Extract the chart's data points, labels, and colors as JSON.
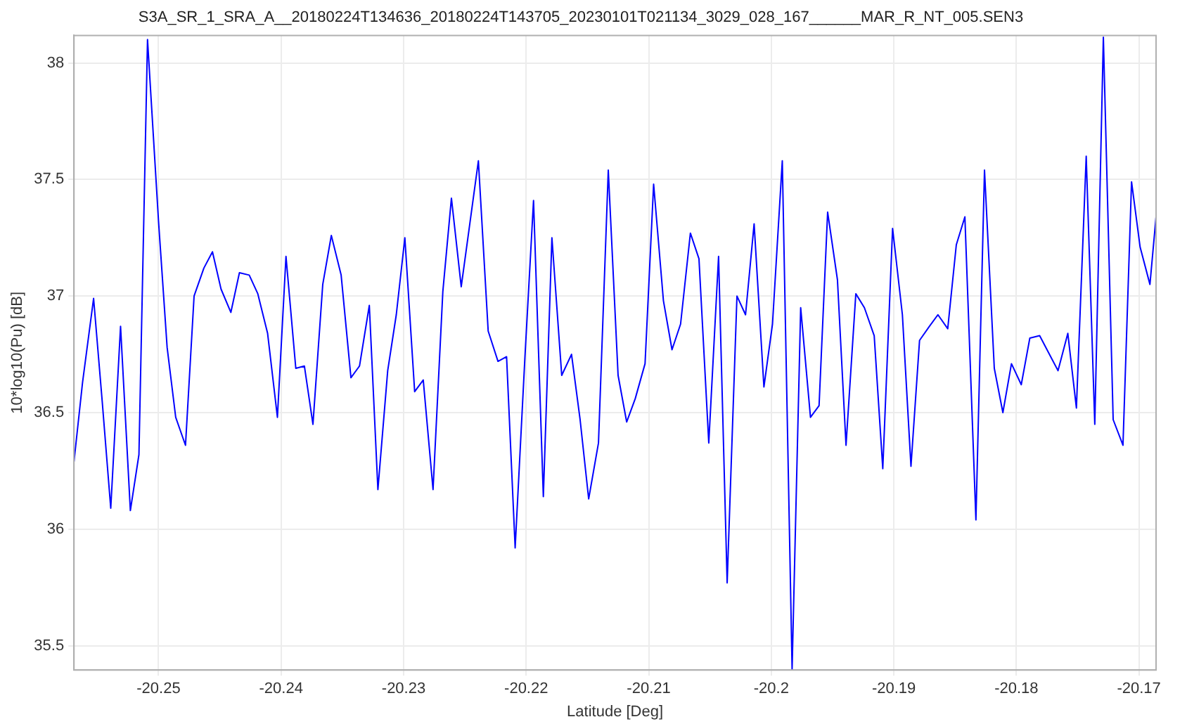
{
  "chart_data": {
    "type": "line",
    "title": "S3A_SR_1_SRA_A__20180224T134636_20180224T143705_20230101T021134_3029_028_167______MAR_R_NT_005.SEN3",
    "xlabel": "Latitude [Deg]",
    "ylabel": "10*log10(Pu) [dB]",
    "x": [
      -20.2569,
      -20.2562,
      -20.2553,
      -20.2546,
      -20.2539,
      -20.2531,
      -20.2523,
      -20.2516,
      -20.2509,
      -20.25,
      -20.2493,
      -20.2486,
      -20.2478,
      -20.2471,
      -20.2463,
      -20.2456,
      -20.2449,
      -20.2441,
      -20.2434,
      -20.2426,
      -20.2419,
      -20.2411,
      -20.2403,
      -20.2396,
      -20.2388,
      -20.2381,
      -20.2374,
      -20.2366,
      -20.2359,
      -20.2351,
      -20.2343,
      -20.2336,
      -20.2328,
      -20.2321,
      -20.2313,
      -20.2306,
      -20.2299,
      -20.2291,
      -20.2284,
      -20.2276,
      -20.2268,
      -20.2261,
      -20.2253,
      -20.2246,
      -20.2239,
      -20.2231,
      -20.2223,
      -20.2216,
      -20.2209,
      -20.2201,
      -20.2194,
      -20.2186,
      -20.2179,
      -20.2171,
      -20.2163,
      -20.2156,
      -20.2149,
      -20.2141,
      -20.2133,
      -20.2125,
      -20.2118,
      -20.2111,
      -20.2103,
      -20.2096,
      -20.2088,
      -20.2081,
      -20.2074,
      -20.2066,
      -20.2059,
      -20.2051,
      -20.2043,
      -20.2036,
      -20.2028,
      -20.2021,
      -20.2014,
      -20.2006,
      -20.1999,
      -20.1991,
      -20.1983,
      -20.1976,
      -20.1968,
      -20.1961,
      -20.1954,
      -20.1946,
      -20.1939,
      -20.1931,
      -20.1924,
      -20.1916,
      -20.1909,
      -20.1901,
      -20.1893,
      -20.1886,
      -20.1879,
      -20.1871,
      -20.1864,
      -20.1856,
      -20.1849,
      -20.1842,
      -20.1833,
      -20.1826,
      -20.1818,
      -20.1811,
      -20.1804,
      -20.1796,
      -20.1789,
      -20.1781,
      -20.1774,
      -20.1766,
      -20.1758,
      -20.1751,
      -20.1743,
      -20.1736,
      -20.1729,
      -20.1721,
      -20.1713,
      -20.1706,
      -20.1699,
      -20.1691,
      -20.1686
    ],
    "series": [
      {
        "color": "#0000ff",
        "values": [
          36.29,
          36.63,
          36.99,
          36.55,
          36.09,
          36.87,
          36.08,
          36.32,
          38.1,
          37.32,
          36.78,
          36.48,
          36.36,
          37.0,
          37.12,
          37.19,
          37.03,
          36.93,
          37.1,
          37.09,
          37.01,
          36.84,
          36.48,
          37.17,
          36.69,
          36.7,
          36.45,
          37.05,
          37.26,
          37.09,
          36.65,
          36.7,
          36.96,
          36.17,
          36.68,
          36.92,
          37.25,
          36.59,
          36.64,
          36.17,
          37.02,
          37.42,
          37.04,
          37.31,
          37.58,
          36.85,
          36.72,
          36.74,
          35.92,
          36.74,
          37.41,
          36.14,
          37.25,
          36.66,
          36.75,
          36.47,
          36.13,
          36.37,
          37.54,
          36.66,
          36.46,
          36.56,
          36.71,
          37.48,
          36.98,
          36.77,
          36.88,
          37.27,
          37.16,
          36.37,
          37.17,
          35.77,
          37.0,
          36.92,
          37.31,
          36.61,
          36.88,
          37.58,
          35.4,
          36.95,
          36.48,
          36.53,
          37.36,
          37.07,
          36.36,
          37.01,
          36.95,
          36.83,
          36.26,
          37.29,
          36.92,
          36.27,
          36.81,
          36.87,
          36.92,
          36.86,
          37.22,
          37.34,
          36.04,
          37.54,
          36.69,
          36.5,
          36.71,
          36.62,
          36.82,
          36.83,
          36.76,
          36.68,
          36.84,
          36.52,
          37.6,
          36.45,
          38.11,
          36.47,
          36.36,
          37.49,
          37.21,
          37.05,
          37.34
        ]
      }
    ],
    "xlim": [
      -20.2569,
      -20.1686
    ],
    "ylim": [
      35.396,
      38.118
    ],
    "xticks": [
      -20.25,
      -20.24,
      -20.23,
      -20.22,
      -20.21,
      -20.2,
      -20.19,
      -20.18,
      -20.17
    ],
    "yticks": [
      35.5,
      36,
      36.5,
      37,
      37.5,
      38
    ],
    "grid": true,
    "legend": false,
    "marker": "none",
    "line_style": "solid"
  }
}
